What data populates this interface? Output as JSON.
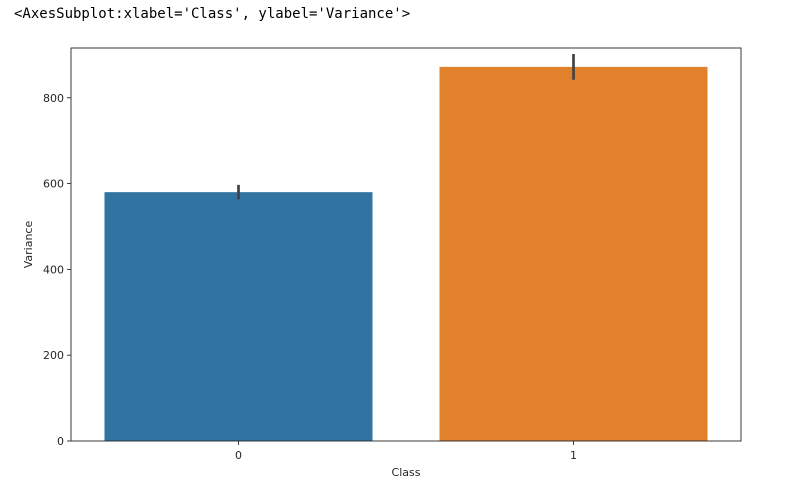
{
  "output_repr": "<AxesSubplot:xlabel='Class', ylabel='Variance'>",
  "chart_data": {
    "type": "bar",
    "categories": [
      "0",
      "1"
    ],
    "values": [
      580,
      872
    ],
    "error_bars": [
      [
        563,
        597
      ],
      [
        842,
        902
      ]
    ],
    "colors": [
      "#3274a1",
      "#e1812c"
    ],
    "xlabel": "Class",
    "ylabel": "Variance",
    "ylim": [
      0,
      916
    ],
    "yticks": [
      0,
      200,
      400,
      600,
      800
    ],
    "grid": false,
    "error_bar_color": "#424242"
  }
}
